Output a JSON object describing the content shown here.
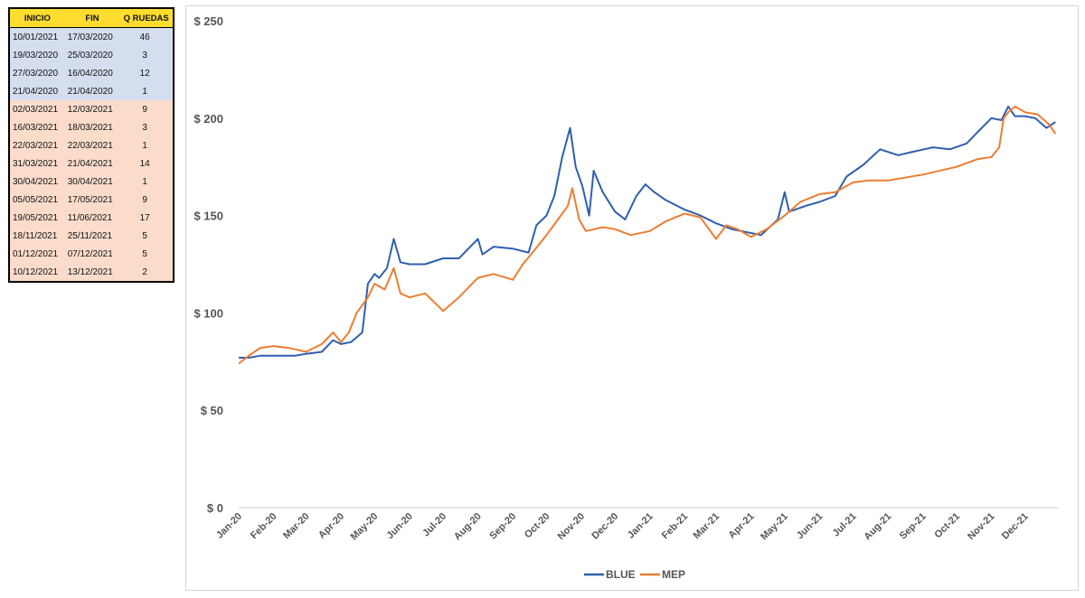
{
  "table": {
    "headers": [
      "INICIO",
      "FIN",
      "Q RUEDAS"
    ],
    "rows": [
      {
        "inicio": "10/01/2021",
        "fin": "17/03/2020",
        "q": "46",
        "group": 1
      },
      {
        "inicio": "19/03/2020",
        "fin": "25/03/2020",
        "q": "3",
        "group": 1
      },
      {
        "inicio": "27/03/2020",
        "fin": "16/04/2020",
        "q": "12",
        "group": 1
      },
      {
        "inicio": "21/04/2020",
        "fin": "21/04/2020",
        "q": "1",
        "group": 1
      },
      {
        "inicio": "02/03/2021",
        "fin": "12/03/2021",
        "q": "9",
        "group": 2
      },
      {
        "inicio": "16/03/2021",
        "fin": "18/03/2021",
        "q": "3",
        "group": 2
      },
      {
        "inicio": "22/03/2021",
        "fin": "22/03/2021",
        "q": "1",
        "group": 2
      },
      {
        "inicio": "31/03/2021",
        "fin": "21/04/2021",
        "q": "14",
        "group": 2
      },
      {
        "inicio": "30/04/2021",
        "fin": "30/04/2021",
        "q": "1",
        "group": 2
      },
      {
        "inicio": "05/05/2021",
        "fin": "17/05/2021",
        "q": "9",
        "group": 2
      },
      {
        "inicio": "19/05/2021",
        "fin": "11/06/2021",
        "q": "17",
        "group": 2
      },
      {
        "inicio": "18/11/2021",
        "fin": "25/11/2021",
        "q": "5",
        "group": 2
      },
      {
        "inicio": "01/12/2021",
        "fin": "07/12/2021",
        "q": "5",
        "group": 2
      },
      {
        "inicio": "10/12/2021",
        "fin": "13/12/2021",
        "q": "2",
        "group": 2
      }
    ],
    "group_colors": {
      "1": "#d5deee",
      "2": "#fbdccb"
    },
    "header_color": "#ffdd2e"
  },
  "chart_data": {
    "type": "line",
    "title": "",
    "xlabel": "",
    "ylabel": "",
    "ylim": [
      0,
      250
    ],
    "y_ticks": [
      0,
      50,
      100,
      150,
      200,
      250
    ],
    "y_tick_labels": [
      "$ 0",
      "$ 50",
      "$ 100",
      "$ 150",
      "$ 200",
      "$ 250"
    ],
    "x_tick_labels": [
      "Jan-20",
      "Feb-20",
      "Mar-20",
      "Apr-20",
      "May-20",
      "Jun-20",
      "Jul-20",
      "Aug-20",
      "Sep-20",
      "Oct-20",
      "Nov-20",
      "Dec-20",
      "Jan-21",
      "Feb-21",
      "Mar-21",
      "Apr-21",
      "May-21",
      "Jun-21",
      "Jul-21",
      "Aug-21",
      "Sep-21",
      "Oct-21",
      "Nov-21",
      "Dec-21"
    ],
    "x_tick_dates": [
      "2020-01-01",
      "2020-02-01",
      "2020-03-01",
      "2020-04-01",
      "2020-05-01",
      "2020-06-01",
      "2020-07-01",
      "2020-08-01",
      "2020-09-01",
      "2020-10-01",
      "2020-11-01",
      "2020-12-01",
      "2021-01-01",
      "2021-02-01",
      "2021-03-01",
      "2021-04-01",
      "2021-05-01",
      "2021-06-01",
      "2021-07-01",
      "2021-08-01",
      "2021-09-01",
      "2021-10-01",
      "2021-11-01",
      "2021-12-01"
    ],
    "x_range": [
      "2020-01-01",
      "2021-12-31"
    ],
    "grid": false,
    "legend_position": "bottom-center",
    "series": [
      {
        "name": "BLUE",
        "color": "#2f5fae",
        "points": [
          [
            "2020-01-01",
            77
          ],
          [
            "2020-01-10",
            77
          ],
          [
            "2020-01-20",
            78
          ],
          [
            "2020-02-01",
            78
          ],
          [
            "2020-02-10",
            78
          ],
          [
            "2020-02-20",
            78
          ],
          [
            "2020-03-01",
            79
          ],
          [
            "2020-03-15",
            80
          ],
          [
            "2020-03-25",
            86
          ],
          [
            "2020-04-01",
            84
          ],
          [
            "2020-04-10",
            85
          ],
          [
            "2020-04-20",
            90
          ],
          [
            "2020-04-25",
            115
          ],
          [
            "2020-05-01",
            120
          ],
          [
            "2020-05-05",
            118
          ],
          [
            "2020-05-12",
            123
          ],
          [
            "2020-05-18",
            138
          ],
          [
            "2020-05-24",
            126
          ],
          [
            "2020-06-01",
            125
          ],
          [
            "2020-06-15",
            125
          ],
          [
            "2020-07-01",
            128
          ],
          [
            "2020-07-15",
            128
          ],
          [
            "2020-08-01",
            138
          ],
          [
            "2020-08-05",
            130
          ],
          [
            "2020-08-15",
            134
          ],
          [
            "2020-09-01",
            133
          ],
          [
            "2020-09-15",
            131
          ],
          [
            "2020-09-22",
            145
          ],
          [
            "2020-10-01",
            150
          ],
          [
            "2020-10-08",
            160
          ],
          [
            "2020-10-15",
            180
          ],
          [
            "2020-10-22",
            195
          ],
          [
            "2020-10-27",
            175
          ],
          [
            "2020-11-02",
            165
          ],
          [
            "2020-11-08",
            150
          ],
          [
            "2020-11-12",
            173
          ],
          [
            "2020-11-20",
            162
          ],
          [
            "2020-12-01",
            152
          ],
          [
            "2020-12-10",
            148
          ],
          [
            "2020-12-20",
            160
          ],
          [
            "2020-12-28",
            166
          ],
          [
            "2021-01-05",
            162
          ],
          [
            "2021-01-15",
            158
          ],
          [
            "2021-02-01",
            153
          ],
          [
            "2021-02-15",
            150
          ],
          [
            "2021-03-01",
            146
          ],
          [
            "2021-03-15",
            143
          ],
          [
            "2021-04-01",
            141
          ],
          [
            "2021-04-10",
            140
          ],
          [
            "2021-04-25",
            148
          ],
          [
            "2021-05-01",
            162
          ],
          [
            "2021-05-05",
            152
          ],
          [
            "2021-05-20",
            155
          ],
          [
            "2021-06-01",
            157
          ],
          [
            "2021-06-15",
            160
          ],
          [
            "2021-06-25",
            170
          ],
          [
            "2021-07-10",
            176
          ],
          [
            "2021-07-25",
            184
          ],
          [
            "2021-08-10",
            181
          ],
          [
            "2021-08-25",
            183
          ],
          [
            "2021-09-10",
            185
          ],
          [
            "2021-09-25",
            184
          ],
          [
            "2021-10-10",
            187
          ],
          [
            "2021-10-20",
            193
          ],
          [
            "2021-11-01",
            200
          ],
          [
            "2021-11-10",
            199
          ],
          [
            "2021-11-16",
            206
          ],
          [
            "2021-11-22",
            201
          ],
          [
            "2021-12-01",
            201
          ],
          [
            "2021-12-10",
            200
          ],
          [
            "2021-12-20",
            195
          ],
          [
            "2021-12-28",
            198
          ]
        ]
      },
      {
        "name": "MEP",
        "color": "#ed7d31",
        "points": [
          [
            "2020-01-01",
            74
          ],
          [
            "2020-01-10",
            78
          ],
          [
            "2020-01-20",
            82
          ],
          [
            "2020-02-01",
            83
          ],
          [
            "2020-02-15",
            82
          ],
          [
            "2020-03-01",
            80
          ],
          [
            "2020-03-15",
            84
          ],
          [
            "2020-03-25",
            90
          ],
          [
            "2020-04-01",
            85
          ],
          [
            "2020-04-08",
            90
          ],
          [
            "2020-04-15",
            100
          ],
          [
            "2020-04-25",
            108
          ],
          [
            "2020-05-01",
            115
          ],
          [
            "2020-05-10",
            112
          ],
          [
            "2020-05-18",
            123
          ],
          [
            "2020-05-24",
            110
          ],
          [
            "2020-06-01",
            108
          ],
          [
            "2020-06-15",
            110
          ],
          [
            "2020-07-01",
            101
          ],
          [
            "2020-07-15",
            108
          ],
          [
            "2020-08-01",
            118
          ],
          [
            "2020-08-15",
            120
          ],
          [
            "2020-09-01",
            117
          ],
          [
            "2020-09-10",
            125
          ],
          [
            "2020-09-20",
            132
          ],
          [
            "2020-10-01",
            140
          ],
          [
            "2020-10-10",
            147
          ],
          [
            "2020-10-20",
            155
          ],
          [
            "2020-10-24",
            164
          ],
          [
            "2020-10-30",
            148
          ],
          [
            "2020-11-05",
            142
          ],
          [
            "2020-11-20",
            144
          ],
          [
            "2020-12-01",
            143
          ],
          [
            "2020-12-15",
            140
          ],
          [
            "2021-01-01",
            142
          ],
          [
            "2021-01-15",
            147
          ],
          [
            "2021-02-01",
            151
          ],
          [
            "2021-02-15",
            149
          ],
          [
            "2021-03-01",
            138
          ],
          [
            "2021-03-10",
            145
          ],
          [
            "2021-03-20",
            143
          ],
          [
            "2021-04-01",
            139
          ],
          [
            "2021-04-15",
            143
          ],
          [
            "2021-05-01",
            150
          ],
          [
            "2021-05-15",
            157
          ],
          [
            "2021-06-01",
            161
          ],
          [
            "2021-06-15",
            162
          ],
          [
            "2021-07-01",
            167
          ],
          [
            "2021-07-15",
            168
          ],
          [
            "2021-08-01",
            168
          ],
          [
            "2021-09-01",
            171
          ],
          [
            "2021-10-01",
            175
          ],
          [
            "2021-10-20",
            179
          ],
          [
            "2021-11-01",
            180
          ],
          [
            "2021-11-08",
            185
          ],
          [
            "2021-11-12",
            200
          ],
          [
            "2021-11-16",
            203
          ],
          [
            "2021-11-22",
            206
          ],
          [
            "2021-12-01",
            203
          ],
          [
            "2021-12-12",
            202
          ],
          [
            "2021-12-22",
            197
          ],
          [
            "2021-12-28",
            192
          ]
        ]
      }
    ]
  }
}
